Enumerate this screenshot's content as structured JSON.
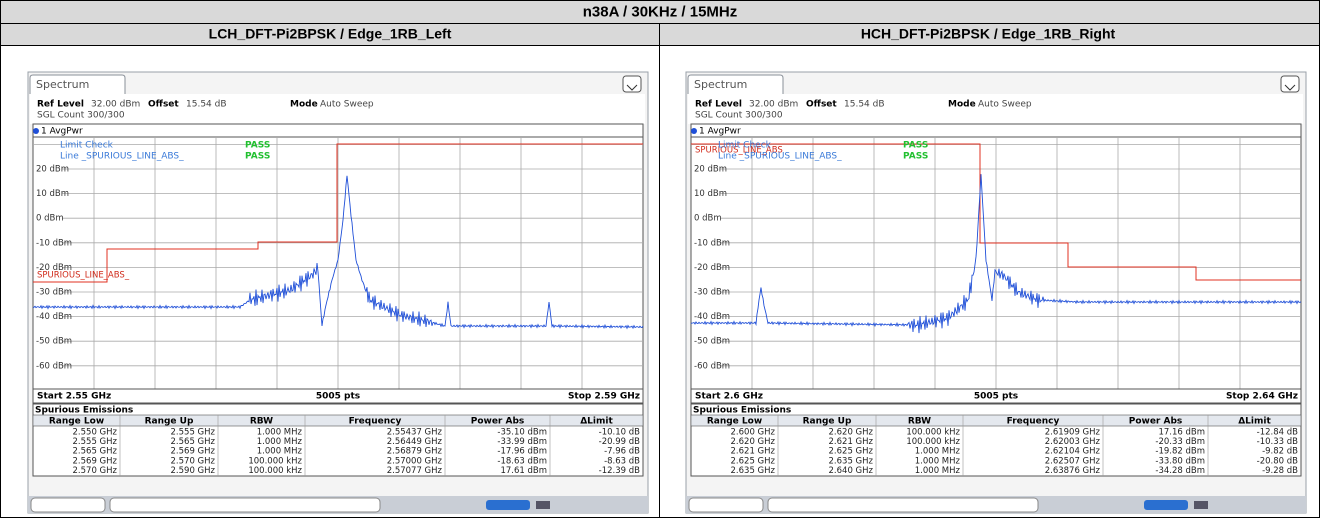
{
  "title": "n38A / 30KHz / 15MHz",
  "panels": [
    {
      "heading": "LCH_DFT-Pi2BPSK / Edge_1RB_Left",
      "tab": "Spectrum",
      "ref_level_label": "Ref Level",
      "ref_level": "32.00 dBm",
      "offset_label": "Offset",
      "offset": "15.54 dB",
      "mode_label": "Mode",
      "mode": "Auto Sweep",
      "sgl_count": "SGL Count 300/300",
      "trace": "1 AvgPwr",
      "limit_check": "Limit Check",
      "limit_check_result": "PASS",
      "line": "Line _SPURIOUS_LINE_ABS_",
      "line_result": "PASS",
      "limit_line_label": "SPURIOUS_LINE_ABS_",
      "y_labels": [
        "20 dBm",
        "10 dBm",
        "0 dBm",
        "-10 dBm",
        "-20 dBm",
        "-30 dBm",
        "-40 dBm",
        "-50 dBm",
        "-60 dBm"
      ],
      "start": "Start 2.55 GHz",
      "points": "5005 pts",
      "stop": "Stop 2.59 GHz",
      "table_title": "Spurious Emissions",
      "columns": [
        "Range Low",
        "Range Up",
        "RBW",
        "Frequency",
        "Power Abs",
        "ΔLimit"
      ],
      "rows": [
        [
          "2.550 GHz",
          "2.555 GHz",
          "1.000 MHz",
          "2.55437 GHz",
          "-35.10 dBm",
          "-10.10 dB"
        ],
        [
          "2.555 GHz",
          "2.565 GHz",
          "1.000 MHz",
          "2.56449 GHz",
          "-33.99 dBm",
          "-20.99 dB"
        ],
        [
          "2.565 GHz",
          "2.569 GHz",
          "1.000 MHz",
          "2.56879 GHz",
          "-17.96 dBm",
          "-7.96 dB"
        ],
        [
          "2.569 GHz",
          "2.570 GHz",
          "100.000 kHz",
          "2.57000 GHz",
          "-18.63 dBm",
          "-8.63 dB"
        ],
        [
          "2.570 GHz",
          "2.590 GHz",
          "100.000 kHz",
          "2.57077 GHz",
          "17.61 dBm",
          "-12.39 dB"
        ]
      ]
    },
    {
      "heading": "HCH_DFT-Pi2BPSK / Edge_1RB_Right",
      "tab": "Spectrum",
      "ref_level_label": "Ref Level",
      "ref_level": "32.00 dBm",
      "offset_label": "Offset",
      "offset": "15.54 dB",
      "mode_label": "Mode",
      "mode": "Auto Sweep",
      "sgl_count": "SGL Count 300/300",
      "trace": "1 AvgPwr",
      "limit_check": "Limit Check",
      "limit_check_result": "PASS",
      "line": "Line _SPURIOUS_LINE_ABS_",
      "line_result": "PASS",
      "limit_line_label": "SPURIOUS_LINE_ABS",
      "y_labels": [
        "20 dBm",
        "10 dBm",
        "0 dBm",
        "-10 dBm",
        "-20 dBm",
        "-30 dBm",
        "-40 dBm",
        "-50 dBm",
        "-60 dBm"
      ],
      "start": "Start 2.6 GHz",
      "points": "5005 pts",
      "stop": "Stop 2.64 GHz",
      "table_title": "Spurious Emissions",
      "columns": [
        "Range Low",
        "Range Up",
        "RBW",
        "Frequency",
        "Power Abs",
        "ΔLimit"
      ],
      "rows": [
        [
          "2.600 GHz",
          "2.620 GHz",
          "100.000 kHz",
          "2.61909 GHz",
          "17.16 dBm",
          "-12.84 dB"
        ],
        [
          "2.620 GHz",
          "2.621 GHz",
          "100.000 kHz",
          "2.62003 GHz",
          "-20.33 dBm",
          "-10.33 dB"
        ],
        [
          "2.621 GHz",
          "2.625 GHz",
          "1.000 MHz",
          "2.62104 GHz",
          "-19.82 dBm",
          "-9.82 dB"
        ],
        [
          "2.625 GHz",
          "2.635 GHz",
          "1.000 MHz",
          "2.62507 GHz",
          "-33.80 dBm",
          "-20.80 dB"
        ],
        [
          "2.635 GHz",
          "2.640 GHz",
          "1.000 MHz",
          "2.63876 GHz",
          "-34.28 dBm",
          "-9.28 dB"
        ]
      ]
    }
  ]
}
